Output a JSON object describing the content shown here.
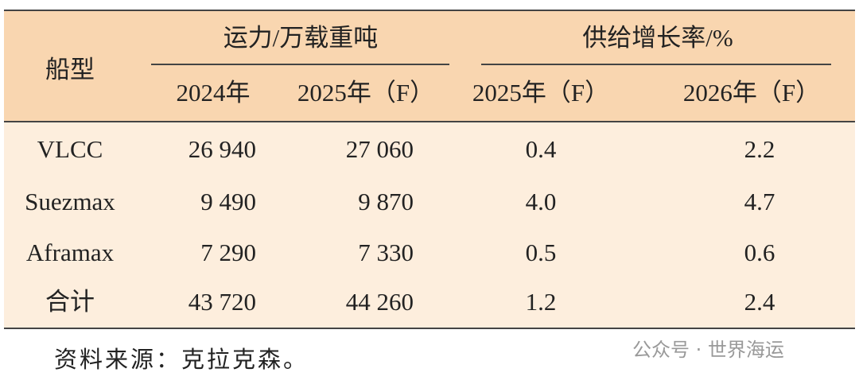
{
  "table": {
    "header": {
      "ship_type": "船型",
      "capacity": "运力/万载重吨",
      "growth": "供给增长率/%",
      "columns": [
        "2024年",
        "2025年（F）",
        "2025年（F）",
        "2026年（F）"
      ]
    },
    "rows": [
      [
        "VLCC",
        "26 940",
        "27 060",
        "0.4",
        "2.2"
      ],
      [
        "Suezmax",
        "9 490",
        "9 870",
        "4.0",
        "4.7"
      ],
      [
        "Aframax",
        "7 290",
        "7 330",
        "0.5",
        "0.6"
      ],
      [
        "合计",
        "43 720",
        "44 260",
        "1.2",
        "2.4"
      ]
    ]
  },
  "source": "资料来源：克拉克森。",
  "watermark": "公众号 · 世界海运"
}
